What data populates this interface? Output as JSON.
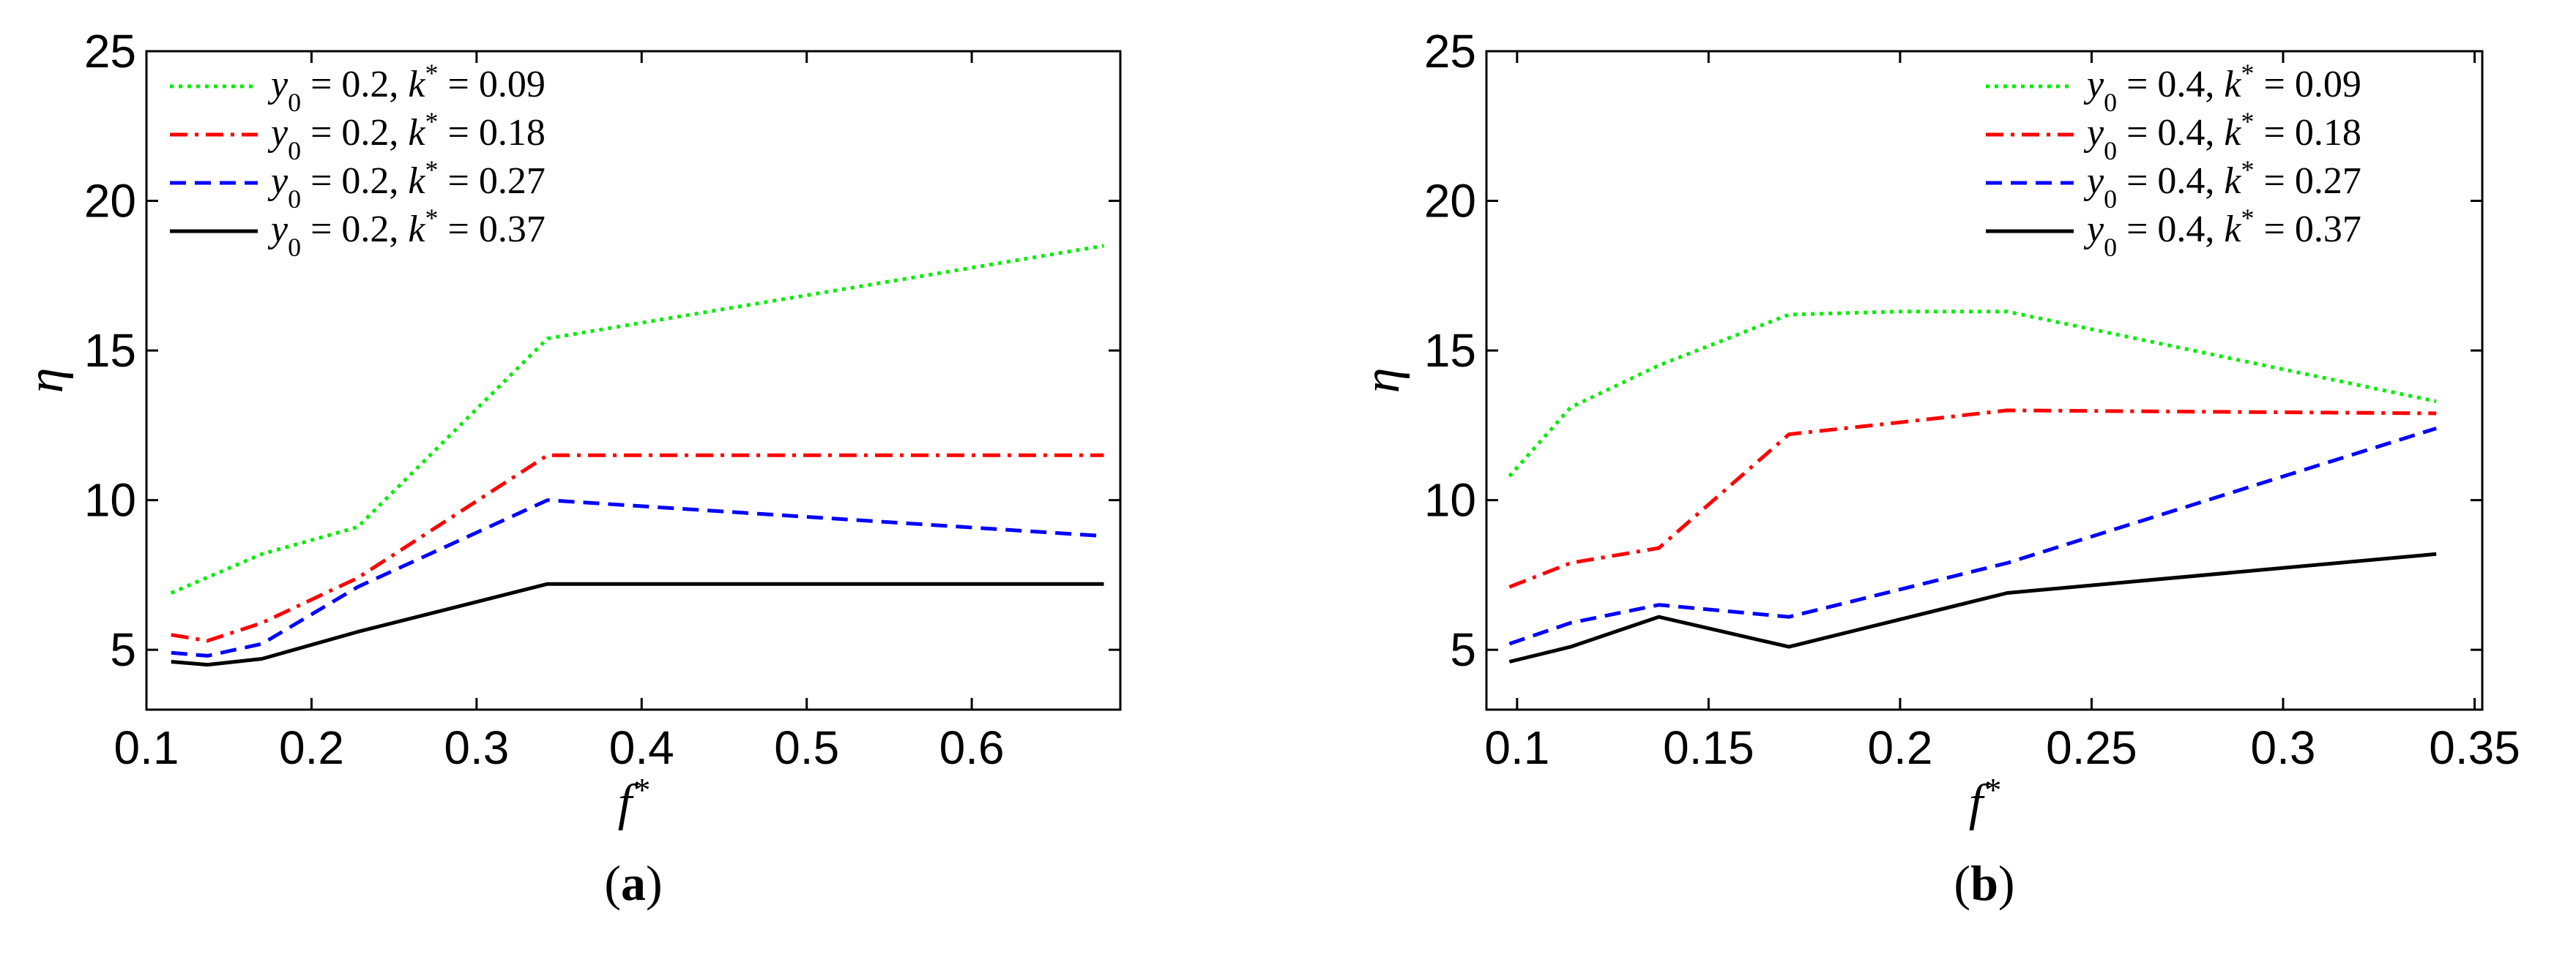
{
  "chart_data": [
    {
      "type": "line",
      "panel_label": "a",
      "xlabel": "f*",
      "ylabel": "η",
      "xlim": [
        0.1,
        0.69
      ],
      "ylim": [
        3,
        25
      ],
      "xticks": [
        0.1,
        0.2,
        0.3,
        0.4,
        0.5,
        0.6
      ],
      "xtick_labels": [
        "0.1",
        "0.2",
        "0.3",
        "0.4",
        "0.5",
        "0.6"
      ],
      "yticks": [
        5,
        10,
        15,
        20,
        25
      ],
      "ytick_labels": [
        "5",
        "10",
        "15",
        "20",
        "25"
      ],
      "legend_position": "top-left",
      "series": [
        {
          "name": "y0 = 0.2, k* = 0.09",
          "color": "#00ee00",
          "dash": "dotted",
          "x": [
            0.115,
            0.17,
            0.228,
            0.343,
            0.68
          ],
          "y": [
            6.9,
            8.2,
            9.1,
            15.4,
            18.5
          ]
        },
        {
          "name": "y0 = 0.2, k* = 0.18",
          "color": "#ff0000",
          "dash": "dashdot",
          "x": [
            0.115,
            0.137,
            0.17,
            0.228,
            0.343,
            0.68
          ],
          "y": [
            5.5,
            5.3,
            5.9,
            7.4,
            11.5,
            11.5
          ]
        },
        {
          "name": "y0 = 0.2, k* = 0.27",
          "color": "#0000ff",
          "dash": "dashed",
          "x": [
            0.115,
            0.137,
            0.17,
            0.228,
            0.343,
            0.68
          ],
          "y": [
            4.9,
            4.8,
            5.2,
            7.1,
            10.0,
            8.8
          ]
        },
        {
          "name": "y0 = 0.2, k* = 0.37",
          "color": "#000000",
          "dash": "solid",
          "x": [
            0.115,
            0.137,
            0.17,
            0.228,
            0.343,
            0.68
          ],
          "y": [
            4.6,
            4.5,
            4.7,
            5.6,
            7.2,
            7.2
          ]
        }
      ]
    },
    {
      "type": "line",
      "panel_label": "b",
      "xlabel": "f*",
      "ylabel": "η",
      "xlim": [
        0.092,
        0.352
      ],
      "ylim": [
        3,
        25
      ],
      "xticks": [
        0.1,
        0.15,
        0.2,
        0.25,
        0.3,
        0.35
      ],
      "xtick_labels": [
        "0.1",
        "0.15",
        "0.2",
        "0.25",
        "0.3",
        "0.35"
      ],
      "yticks": [
        5,
        10,
        15,
        20,
        25
      ],
      "ytick_labels": [
        "5",
        "10",
        "15",
        "20",
        "25"
      ],
      "legend_position": "top-right",
      "series": [
        {
          "name": "y0 = 0.4, k* = 0.09",
          "color": "#00ee00",
          "dash": "dotted",
          "x": [
            0.098,
            0.114,
            0.137,
            0.171,
            0.2,
            0.228,
            0.34
          ],
          "y": [
            10.8,
            13.1,
            14.5,
            16.2,
            16.3,
            16.3,
            13.3
          ]
        },
        {
          "name": "y0 = 0.4, k* = 0.18",
          "color": "#ff0000",
          "dash": "dashdot",
          "x": [
            0.098,
            0.114,
            0.137,
            0.171,
            0.2,
            0.228,
            0.34
          ],
          "y": [
            7.1,
            7.9,
            8.4,
            12.2,
            12.6,
            13.0,
            12.9
          ]
        },
        {
          "name": "y0 = 0.4, k* = 0.27",
          "color": "#0000ff",
          "dash": "dashed",
          "x": [
            0.098,
            0.114,
            0.137,
            0.171,
            0.228,
            0.34
          ],
          "y": [
            5.2,
            5.9,
            6.5,
            6.1,
            7.9,
            12.4
          ]
        },
        {
          "name": "y0 = 0.4, k* = 0.37",
          "color": "#000000",
          "dash": "solid",
          "x": [
            0.098,
            0.114,
            0.137,
            0.171,
            0.228,
            0.34
          ],
          "y": [
            4.6,
            5.1,
            6.1,
            5.1,
            6.9,
            8.2
          ]
        }
      ]
    }
  ]
}
